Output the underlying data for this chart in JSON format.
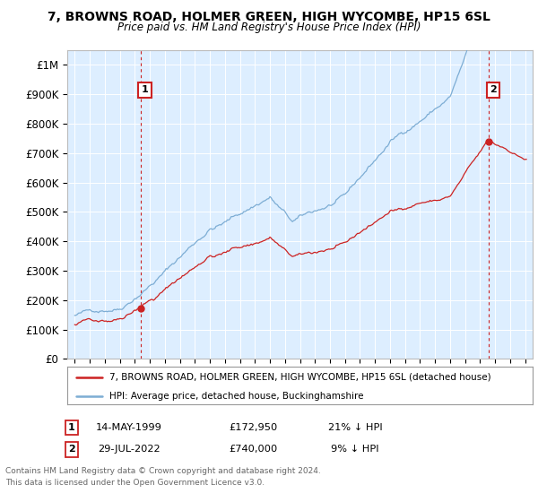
{
  "title": "7, BROWNS ROAD, HOLMER GREEN, HIGH WYCOMBE, HP15 6SL",
  "subtitle": "Price paid vs. HM Land Registry's House Price Index (HPI)",
  "hpi_label": "HPI: Average price, detached house, Buckinghamshire",
  "property_label": "7, BROWNS ROAD, HOLMER GREEN, HIGH WYCOMBE, HP15 6SL (detached house)",
  "hpi_color": "#7dadd4",
  "property_color": "#cc2222",
  "plot_bg_color": "#ddeeff",
  "annotation1_date": "14-MAY-1999",
  "annotation1_price": "£172,950",
  "annotation1_rel": "21% ↓ HPI",
  "annotation1_year": 1999.37,
  "annotation1_value": 172950,
  "annotation2_date": "29-JUL-2022",
  "annotation2_price": "£740,000",
  "annotation2_rel": "9% ↓ HPI",
  "annotation2_year": 2022.57,
  "annotation2_value": 740000,
  "ylim_min": 0,
  "ylim_max": 1050000,
  "xlim_min": 1994.5,
  "xlim_max": 2025.5,
  "footer_line1": "Contains HM Land Registry data © Crown copyright and database right 2024.",
  "footer_line2": "This data is licensed under the Open Government Licence v3.0.",
  "ytick_vals": [
    0,
    100000,
    200000,
    300000,
    400000,
    500000,
    600000,
    700000,
    800000,
    900000,
    1000000
  ],
  "ytick_labels": [
    "£0",
    "£100K",
    "£200K",
    "£300K",
    "£400K",
    "£500K",
    "£600K",
    "£700K",
    "£800K",
    "£900K",
    "£1M"
  ],
  "xtick_vals": [
    1995,
    1996,
    1997,
    1998,
    1999,
    2000,
    2001,
    2002,
    2003,
    2004,
    2005,
    2006,
    2007,
    2008,
    2009,
    2010,
    2011,
    2012,
    2013,
    2014,
    2015,
    2016,
    2017,
    2018,
    2019,
    2020,
    2021,
    2022,
    2023,
    2024,
    2025
  ]
}
